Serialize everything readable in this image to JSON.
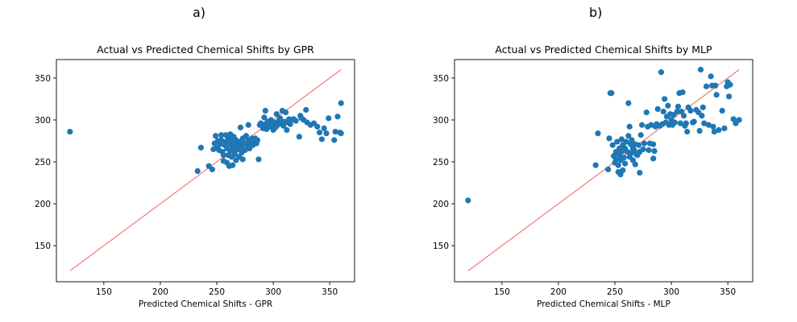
{
  "figure": {
    "labels": [
      "a)",
      "b)"
    ]
  },
  "chart_data": [
    {
      "type": "scatter",
      "title": "Actual vs Predicted Chemical Shifts by GPR",
      "xlabel": "Predicted Chemical Shifts - GPR",
      "ylabel": "",
      "xlim": [
        108,
        372
      ],
      "ylim": [
        107,
        372
      ],
      "xticks": [
        150,
        200,
        250,
        300,
        350
      ],
      "yticks": [
        150,
        200,
        250,
        300,
        350
      ],
      "point_color": "#1f77b4",
      "line_color": "#f07070",
      "reference_line": {
        "x": [
          120,
          360
        ],
        "y": [
          120,
          360
        ]
      },
      "points": [
        [
          120,
          286
        ],
        [
          233,
          239
        ],
        [
          236,
          267
        ],
        [
          243,
          245
        ],
        [
          246,
          241
        ],
        [
          247,
          265
        ],
        [
          248,
          272
        ],
        [
          249,
          281
        ],
        [
          250,
          267
        ],
        [
          251,
          275
        ],
        [
          252,
          264
        ],
        [
          253,
          271
        ],
        [
          254,
          282
        ],
        [
          254,
          276
        ],
        [
          255,
          262
        ],
        [
          256,
          258
        ],
        [
          256,
          251
        ],
        [
          257,
          270
        ],
        [
          258,
          282
        ],
        [
          258,
          274
        ],
        [
          259,
          266
        ],
        [
          259,
          249
        ],
        [
          260,
          278
        ],
        [
          260,
          258
        ],
        [
          261,
          245
        ],
        [
          262,
          283
        ],
        [
          262,
          271
        ],
        [
          262,
          263
        ],
        [
          263,
          276
        ],
        [
          263,
          256
        ],
        [
          264,
          268
        ],
        [
          264,
          246
        ],
        [
          265,
          280
        ],
        [
          265,
          272
        ],
        [
          266,
          263
        ],
        [
          266,
          259
        ],
        [
          267,
          276
        ],
        [
          267,
          252
        ],
        [
          268,
          270
        ],
        [
          269,
          265
        ],
        [
          270,
          274
        ],
        [
          270,
          256
        ],
        [
          271,
          291
        ],
        [
          272,
          268
        ],
        [
          272,
          261
        ],
        [
          273,
          278
        ],
        [
          273,
          253
        ],
        [
          274,
          272
        ],
        [
          275,
          264
        ],
        [
          276,
          281
        ],
        [
          277,
          270
        ],
        [
          278,
          276
        ],
        [
          278,
          294
        ],
        [
          279,
          266
        ],
        [
          280,
          274
        ],
        [
          281,
          278
        ],
        [
          282,
          270
        ],
        [
          283,
          275
        ],
        [
          284,
          278
        ],
        [
          285,
          272
        ],
        [
          286,
          276
        ],
        [
          287,
          253
        ],
        [
          288,
          294
        ],
        [
          289,
          296
        ],
        [
          290,
          293
        ],
        [
          291,
          290
        ],
        [
          292,
          303
        ],
        [
          293,
          295
        ],
        [
          293,
          311
        ],
        [
          294,
          289
        ],
        [
          295,
          298
        ],
        [
          296,
          294
        ],
        [
          297,
          292
        ],
        [
          298,
          300
        ],
        [
          299,
          295
        ],
        [
          300,
          288
        ],
        [
          301,
          297
        ],
        [
          302,
          291
        ],
        [
          303,
          307
        ],
        [
          304,
          294
        ],
        [
          305,
          299
        ],
        [
          306,
          302
        ],
        [
          307,
          296
        ],
        [
          308,
          311
        ],
        [
          309,
          293
        ],
        [
          310,
          298
        ],
        [
          311,
          309
        ],
        [
          312,
          288
        ],
        [
          313,
          297
        ],
        [
          314,
          301
        ],
        [
          315,
          295
        ],
        [
          316,
          300
        ],
        [
          318,
          301
        ],
        [
          320,
          299
        ],
        [
          323,
          280
        ],
        [
          324,
          305
        ],
        [
          325,
          302
        ],
        [
          327,
          300
        ],
        [
          329,
          312
        ],
        [
          330,
          297
        ],
        [
          333,
          294
        ],
        [
          336,
          296
        ],
        [
          339,
          292
        ],
        [
          341,
          285
        ],
        [
          343,
          277
        ],
        [
          345,
          290
        ],
        [
          347,
          284
        ],
        [
          349,
          302
        ],
        [
          354,
          276
        ],
        [
          355,
          286
        ],
        [
          357,
          304
        ],
        [
          359,
          285
        ],
        [
          360,
          284
        ],
        [
          360,
          320
        ]
      ]
    },
    {
      "type": "scatter",
      "title": "Actual vs Predicted Chemical Shifts by MLP",
      "xlabel": "Predicted Chemical Shifts - MLP",
      "ylabel": "",
      "xlim": [
        108,
        372
      ],
      "ylim": [
        107,
        372
      ],
      "xticks": [
        150,
        200,
        250,
        300,
        350
      ],
      "yticks": [
        150,
        200,
        250,
        300,
        350
      ],
      "point_color": "#1f77b4",
      "line_color": "#f07070",
      "reference_line": {
        "x": [
          120,
          360
        ],
        "y": [
          120,
          360
        ]
      },
      "points": [
        [
          120,
          204
        ],
        [
          233,
          246
        ],
        [
          235,
          284
        ],
        [
          244,
          241
        ],
        [
          245,
          278
        ],
        [
          246,
          332
        ],
        [
          247,
          332
        ],
        [
          248,
          270
        ],
        [
          249,
          257
        ],
        [
          250,
          249
        ],
        [
          251,
          253
        ],
        [
          251,
          262
        ],
        [
          252,
          274
        ],
        [
          253,
          238
        ],
        [
          253,
          246
        ],
        [
          254,
          258
        ],
        [
          254,
          266
        ],
        [
          255,
          235
        ],
        [
          255,
          252
        ],
        [
          256,
          277
        ],
        [
          256,
          262
        ],
        [
          257,
          240
        ],
        [
          257,
          270
        ],
        [
          258,
          255
        ],
        [
          259,
          266
        ],
        [
          259,
          248
        ],
        [
          260,
          274
        ],
        [
          261,
          262
        ],
        [
          262,
          320
        ],
        [
          262,
          281
        ],
        [
          263,
          292
        ],
        [
          263,
          256
        ],
        [
          264,
          271
        ],
        [
          264,
          260
        ],
        [
          265,
          276
        ],
        [
          266,
          252
        ],
        [
          266,
          266
        ],
        [
          267,
          264
        ],
        [
          268,
          271
        ],
        [
          268,
          247
        ],
        [
          269,
          259
        ],
        [
          270,
          258
        ],
        [
          271,
          270
        ],
        [
          272,
          237
        ],
        [
          272,
          262
        ],
        [
          273,
          282
        ],
        [
          274,
          294
        ],
        [
          275,
          265
        ],
        [
          276,
          272
        ],
        [
          278,
          309
        ],
        [
          279,
          292
        ],
        [
          280,
          264
        ],
        [
          281,
          272
        ],
        [
          282,
          294
        ],
        [
          284,
          254
        ],
        [
          284,
          271
        ],
        [
          285,
          263
        ],
        [
          286,
          292
        ],
        [
          287,
          295
        ],
        [
          288,
          313
        ],
        [
          290,
          293
        ],
        [
          291,
          357
        ],
        [
          292,
          295
        ],
        [
          293,
          310
        ],
        [
          294,
          325
        ],
        [
          295,
          297
        ],
        [
          296,
          304
        ],
        [
          297,
          317
        ],
        [
          298,
          294
        ],
        [
          299,
          307
        ],
        [
          300,
          300
        ],
        [
          301,
          294
        ],
        [
          302,
          306
        ],
        [
          303,
          297
        ],
        [
          305,
          310
        ],
        [
          306,
          316
        ],
        [
          307,
          332
        ],
        [
          308,
          296
        ],
        [
          309,
          310
        ],
        [
          310,
          333
        ],
        [
          311,
          305
        ],
        [
          312,
          293
        ],
        [
          313,
          296
        ],
        [
          314,
          286
        ],
        [
          315,
          315
        ],
        [
          317,
          311
        ],
        [
          319,
          297
        ],
        [
          320,
          298
        ],
        [
          322,
          312
        ],
        [
          324,
          309
        ],
        [
          325,
          287
        ],
        [
          326,
          360
        ],
        [
          327,
          305
        ],
        [
          328,
          315
        ],
        [
          329,
          296
        ],
        [
          331,
          340
        ],
        [
          333,
          294
        ],
        [
          335,
          352
        ],
        [
          336,
          341
        ],
        [
          337,
          292
        ],
        [
          338,
          286
        ],
        [
          339,
          341
        ],
        [
          340,
          330
        ],
        [
          342,
          288
        ],
        [
          345,
          311
        ],
        [
          347,
          290
        ],
        [
          349,
          340
        ],
        [
          350,
          345
        ],
        [
          351,
          328
        ],
        [
          352,
          342
        ],
        [
          355,
          301
        ],
        [
          357,
          296
        ],
        [
          360,
          300
        ]
      ]
    }
  ]
}
